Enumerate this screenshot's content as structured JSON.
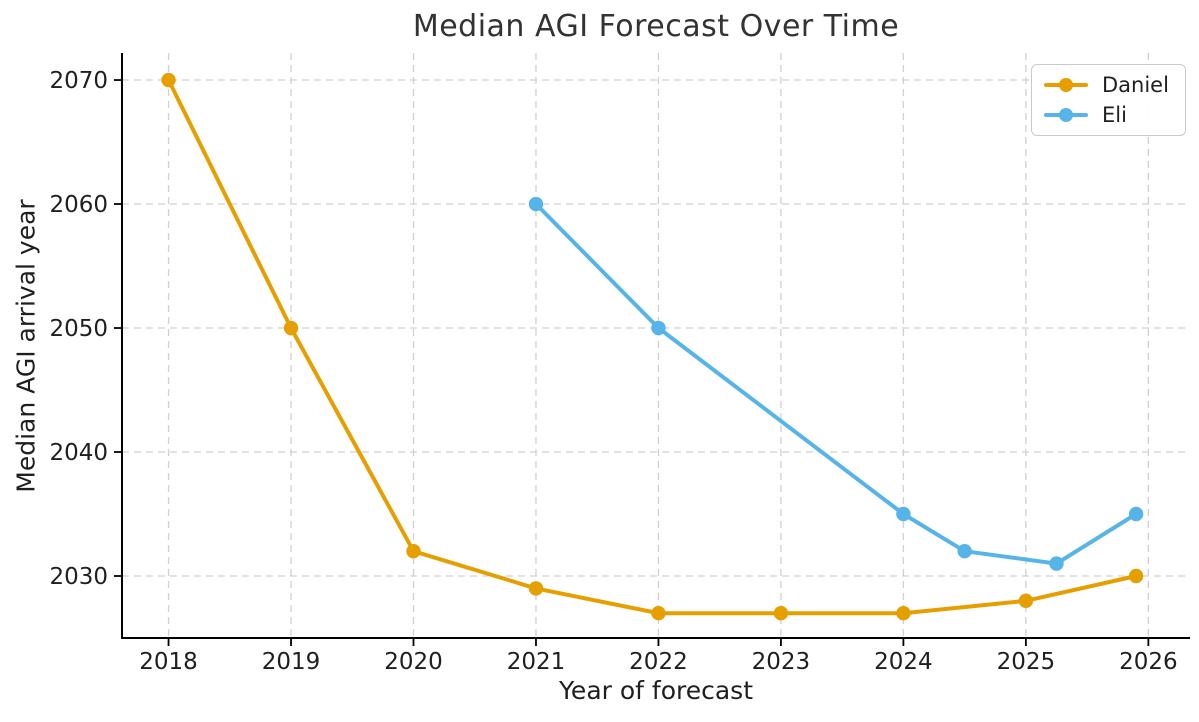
{
  "figure": {
    "background": "#ffffff",
    "text_color": "#1f1f1f",
    "title_color": "#333333",
    "spine_color": "#000000",
    "grid_color": "#d0d0d0"
  },
  "chart_data": {
    "type": "line",
    "title": "Median AGI Forecast Over Time",
    "xlabel": "Year of forecast",
    "ylabel": "Median AGI arrival year",
    "xlim": [
      2017.62,
      2026.34
    ],
    "ylim": [
      2025.0,
      2072.18
    ],
    "x_ticks": [
      2018,
      2019,
      2020,
      2021,
      2022,
      2023,
      2024,
      2025,
      2026
    ],
    "y_ticks": [
      2030,
      2040,
      2050,
      2060,
      2070
    ],
    "grid": "dashed, both axes",
    "legend_position": "upper right",
    "series": [
      {
        "name": "Daniel",
        "color": "#E69F00",
        "marker": "circle",
        "x": [
          2018,
          2019,
          2020,
          2021,
          2022,
          2023,
          2024,
          2025,
          2025.9
        ],
        "y": [
          2070,
          2050,
          2032,
          2029,
          2027,
          2027,
          2027,
          2028,
          2030
        ]
      },
      {
        "name": "Eli",
        "color": "#56B4E9",
        "marker": "circle",
        "x": [
          2021,
          2022,
          2024,
          2024.5,
          2025.25,
          2025.9
        ],
        "y": [
          2060,
          2050,
          2035,
          2032,
          2031,
          2035
        ]
      }
    ]
  }
}
